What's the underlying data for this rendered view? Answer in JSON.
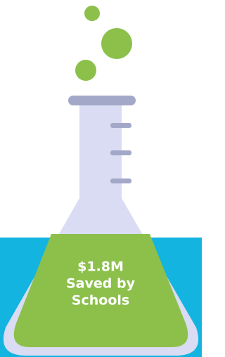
{
  "label": {
    "amount": "$1.8M",
    "lines": [
      "Saved by",
      "Schools"
    ]
  }
}
